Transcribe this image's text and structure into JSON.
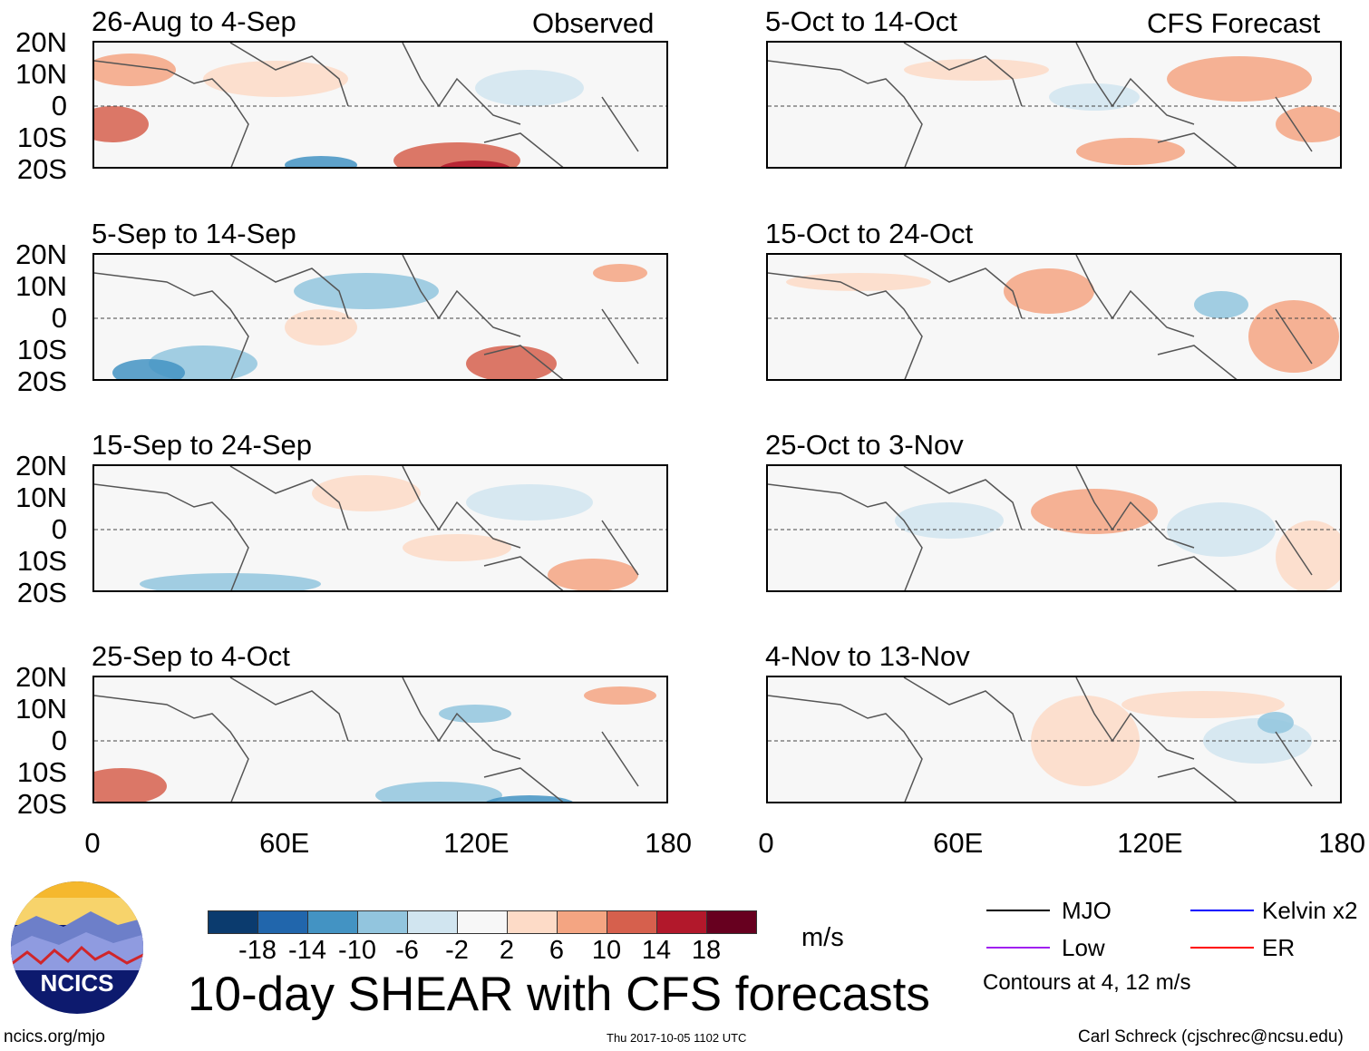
{
  "panels_left_header": "Observed",
  "panels_right_header": "CFS Forecast",
  "panels": [
    {
      "title": "26-Aug to 4-Sep",
      "side": "left"
    },
    {
      "title": "5-Sep to 14-Sep",
      "side": "left"
    },
    {
      "title": "15-Sep to 24-Sep",
      "side": "left"
    },
    {
      "title": "25-Sep to 4-Oct",
      "side": "left"
    },
    {
      "title": "5-Oct to 14-Oct",
      "side": "right"
    },
    {
      "title": "15-Oct to 24-Oct",
      "side": "right"
    },
    {
      "title": "25-Oct to 3-Nov",
      "side": "right"
    },
    {
      "title": "4-Nov to 13-Nov",
      "side": "right"
    }
  ],
  "lat_labels": [
    "20N",
    "10N",
    "0",
    "10S",
    "20S"
  ],
  "lon_labels": [
    "0",
    "60E",
    "120E",
    "180"
  ],
  "colorbar": {
    "colors": [
      "#0b3b6e",
      "#2166ac",
      "#4393c3",
      "#92c5de",
      "#d1e5f0",
      "#f7f7f7",
      "#fddbc7",
      "#f4a582",
      "#d6604d",
      "#b2182b",
      "#67001f"
    ],
    "ticks": [
      "-18",
      "-14",
      "-10",
      "-6",
      "-2",
      "2",
      "6",
      "10",
      "14",
      "18"
    ],
    "units": "m/s"
  },
  "title": "10-day SHEAR with CFS forecasts",
  "legend": {
    "items": [
      {
        "label": "MJO",
        "color": "#000000"
      },
      {
        "label": "Kelvin x2",
        "color": "#0000ff"
      },
      {
        "label": "Low",
        "color": "#a020f0"
      },
      {
        "label": "ER",
        "color": "#ff0000"
      }
    ],
    "note": "Contours at 4, 12 m/s"
  },
  "logo_text": "NCICS",
  "footer": {
    "url": "ncics.org/mjo",
    "timestamp": "Thu 2017-10-05 1102 UTC",
    "author": "Carl Schreck (cjschrec@ncsu.edu)"
  }
}
